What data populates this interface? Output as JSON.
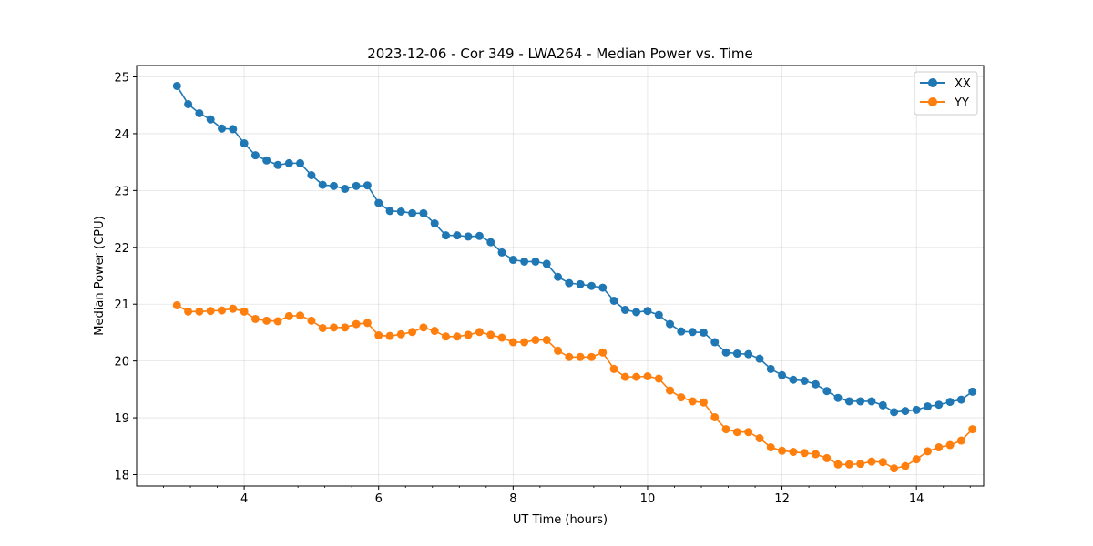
{
  "chart_data": {
    "type": "line",
    "title": "2023-12-06 - Cor 349 - LWA264 - Median Power vs. Time",
    "xlabel": "UT Time (hours)",
    "ylabel": "Median Power (CPU)",
    "xlim": [
      2.4,
      15.0
    ],
    "ylim": [
      17.8,
      25.2
    ],
    "xticks": [
      4,
      6,
      8,
      10,
      12,
      14
    ],
    "xtick_labels": [
      "4",
      "6",
      "8",
      "10",
      "12",
      "14"
    ],
    "yticks": [
      18,
      19,
      20,
      21,
      22,
      23,
      24,
      25
    ],
    "ytick_labels": [
      "18",
      "19",
      "20",
      "21",
      "22",
      "23",
      "24",
      "25"
    ],
    "grid": true,
    "legend_position": "top-right",
    "x": [
      3.0,
      3.167,
      3.333,
      3.5,
      3.667,
      3.833,
      4.0,
      4.167,
      4.333,
      4.5,
      4.667,
      4.833,
      5.0,
      5.167,
      5.333,
      5.5,
      5.667,
      5.833,
      6.0,
      6.167,
      6.333,
      6.5,
      6.667,
      6.833,
      7.0,
      7.167,
      7.333,
      7.5,
      7.667,
      7.833,
      8.0,
      8.167,
      8.333,
      8.5,
      8.667,
      8.833,
      9.0,
      9.167,
      9.333,
      9.5,
      9.667,
      9.833,
      10.0,
      10.167,
      10.333,
      10.5,
      10.667,
      10.833,
      11.0,
      11.167,
      11.333,
      11.5,
      11.667,
      11.833,
      12.0,
      12.167,
      12.333,
      12.5,
      12.667,
      12.833,
      13.0,
      13.167,
      13.333,
      13.5,
      13.667,
      13.833,
      14.0,
      14.167,
      14.333,
      14.5,
      14.667,
      14.833
    ],
    "series": [
      {
        "name": "XX",
        "color": "#1f77b4",
        "values": [
          24.84,
          24.52,
          24.36,
          24.25,
          24.09,
          24.08,
          23.83,
          23.62,
          23.53,
          23.45,
          23.48,
          23.48,
          23.27,
          23.1,
          23.08,
          23.03,
          23.08,
          23.09,
          22.78,
          22.64,
          22.63,
          22.6,
          22.6,
          22.42,
          22.21,
          22.21,
          22.19,
          22.2,
          22.09,
          21.91,
          21.78,
          21.75,
          21.75,
          21.71,
          21.48,
          21.37,
          21.35,
          21.32,
          21.29,
          21.06,
          20.9,
          20.86,
          20.88,
          20.81,
          20.65,
          20.52,
          20.51,
          20.5,
          20.33,
          20.15,
          20.13,
          20.12,
          20.04,
          19.86,
          19.75,
          19.67,
          19.65,
          19.59,
          19.47,
          19.35,
          19.29,
          19.29,
          19.29,
          19.22,
          19.1,
          19.12,
          19.14,
          19.2,
          19.23,
          19.28,
          19.32,
          19.46
        ]
      },
      {
        "name": "YY",
        "color": "#ff7f0e",
        "values": [
          20.98,
          20.87,
          20.87,
          20.88,
          20.89,
          20.92,
          20.87,
          20.74,
          20.71,
          20.7,
          20.79,
          20.8,
          20.71,
          20.58,
          20.59,
          20.59,
          20.65,
          20.67,
          20.45,
          20.44,
          20.47,
          20.51,
          20.59,
          20.53,
          20.43,
          20.43,
          20.46,
          20.51,
          20.46,
          20.41,
          20.33,
          20.33,
          20.37,
          20.37,
          20.18,
          20.07,
          20.07,
          20.07,
          20.15,
          19.86,
          19.72,
          19.72,
          19.73,
          19.69,
          19.48,
          19.36,
          19.29,
          19.27,
          19.01,
          18.8,
          18.75,
          18.75,
          18.64,
          18.48,
          18.42,
          18.4,
          18.38,
          18.36,
          18.29,
          18.18,
          18.18,
          18.19,
          18.23,
          18.22,
          18.11,
          18.15,
          18.27,
          18.41,
          18.48,
          18.52,
          18.6,
          18.8
        ]
      }
    ]
  }
}
